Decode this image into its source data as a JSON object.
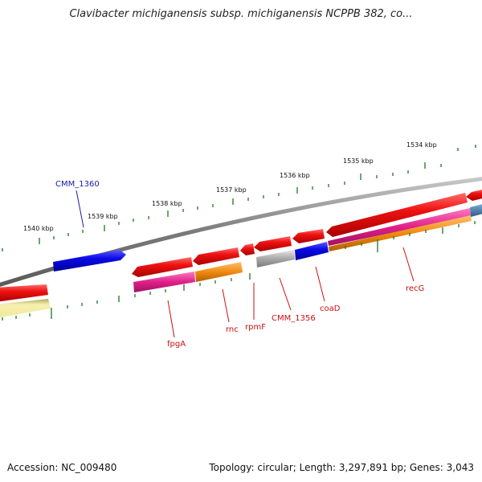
{
  "title": "Clavibacter michiganensis subsp. michiganensis NCPPB 382, co...",
  "footer": {
    "accession": "Accession: NC_009480",
    "topology": "Topology: circular; Length: 3,297,891 bp; Genes: 3,043"
  },
  "kbp_labels": [
    "1540 kbp",
    "1539 kbp",
    "1538 kbp",
    "1537 kbp",
    "1536 kbp",
    "1535 kbp",
    "1534 kbp"
  ],
  "gene_labels": [
    "CMM_1360",
    "fpgA",
    "rnc",
    "rpmF",
    "CMM_1356",
    "coaD",
    "recG"
  ],
  "colors": {
    "backbone": "#7a7a7a",
    "tick": "#1a7a1a",
    "cds_forward_reverse": "#ee1111",
    "highlight_gene": "#0a0ae6",
    "label_red": "#cc1111",
    "label_blue": "#1a1aaa",
    "magenta_feature": "#e0208a",
    "orange_feature": "#f08a10",
    "grey_feature": "#a8a8a8",
    "pale_yellow_feature": "#f0ea9a",
    "steel_blue_feature": "#4a7fb0"
  }
}
